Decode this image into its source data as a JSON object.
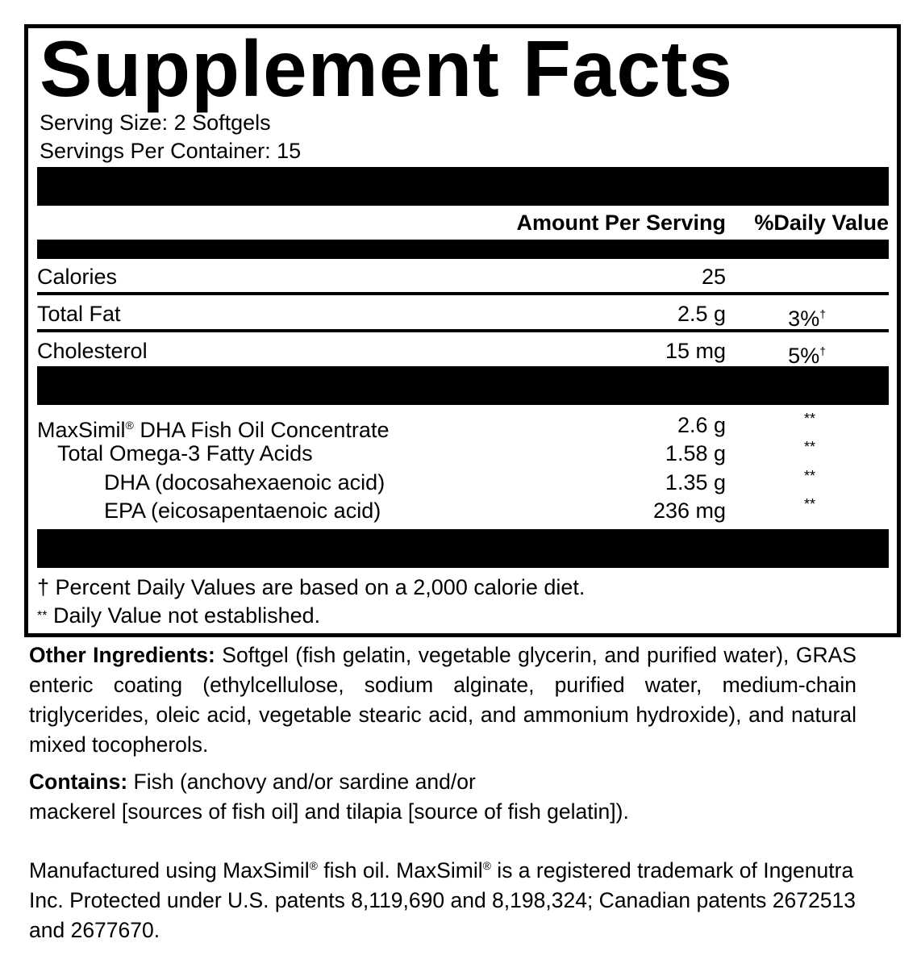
{
  "title": "Supplement Facts",
  "serving_size": "Serving Size: 2 Softgels",
  "servings_per_container": "Servings Per Container: 15",
  "header": {
    "amount": "Amount Per Serving",
    "dv": "%Daily Value"
  },
  "nutrients": [
    {
      "name": "Calories",
      "amount": "25",
      "dv": ""
    },
    {
      "name": "Total Fat",
      "amount": "2.5 g",
      "dv": "3%",
      "mark": "†"
    },
    {
      "name": "Cholesterol",
      "amount": "15 mg",
      "dv": "5%",
      "mark": "†"
    }
  ],
  "ingredients": [
    {
      "name": "MaxSimil",
      "reg": "®",
      "name_rest": " DHA Fish Oil Concentrate",
      "amount": "2.6 g",
      "dv": "**"
    },
    {
      "name": "Total Omega-3 Fatty Acids",
      "amount": "1.58 g",
      "dv": "**"
    },
    {
      "name": "DHA (docosahexaenoic acid)",
      "amount": "1.35 g",
      "dv": "**"
    },
    {
      "name": "EPA (eicosapentaenoic acid)",
      "amount": "236 mg",
      "dv": "**"
    }
  ],
  "footnotes": {
    "dagger": "† Percent Daily Values are based on a 2,000 calorie diet.",
    "stars_mark": "**",
    "stars": " Daily Value not established."
  },
  "other_ingredients": {
    "label": "Other Ingredients:",
    "text": " Softgel (fish gelatin, vegetable glycerin, and purified water), GRAS enteric coating (ethylcellulose, sodium alginate, purified water, medium-chain triglycerides, oleic acid, vegetable stearic acid, and ammonium hydroxide), and natural mixed tocopherols."
  },
  "contains": {
    "label": "Contains:",
    "line1": " Fish (anchovy and/or sardine and/or",
    "line2": "mackerel [sources of fish oil] and tilapia [source of fish gelatin])."
  },
  "manufactured": {
    "p1": "Manufactured using MaxSimil",
    "reg": "®",
    "p2": " fish oil. MaxSimil",
    "p3": " is a registered trademark of Ingenutra Inc. Protected under U.S. patents 8,119,690 and 8,198,324; Canadian patents 2672513 and 2677670."
  }
}
